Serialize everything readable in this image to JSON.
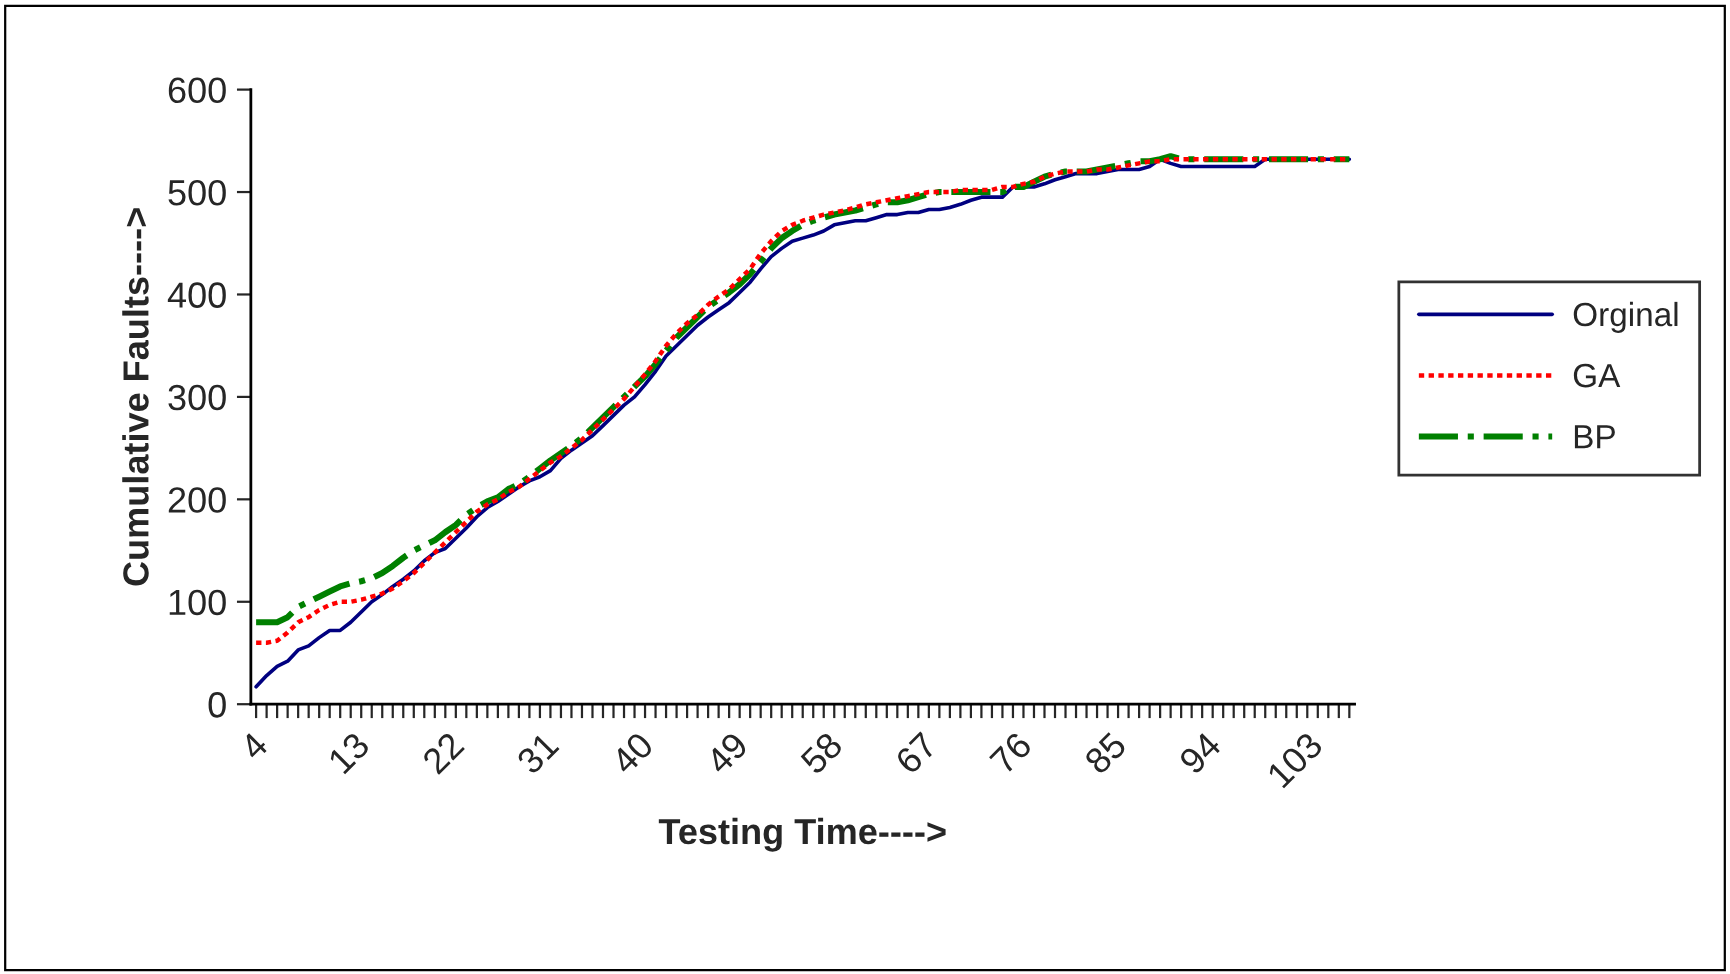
{
  "chart_data": {
    "type": "line",
    "xlabel": "Testing Time---->",
    "ylabel": "Cumulative Faults---->",
    "categories": [
      "4",
      null,
      null,
      null,
      null,
      null,
      null,
      null,
      null,
      "13",
      null,
      null,
      null,
      null,
      null,
      null,
      null,
      null,
      "22",
      null,
      null,
      null,
      null,
      null,
      null,
      null,
      null,
      "31",
      null,
      null,
      null,
      null,
      null,
      null,
      null,
      null,
      "40",
      null,
      null,
      null,
      null,
      null,
      null,
      null,
      null,
      "49",
      null,
      null,
      null,
      null,
      null,
      null,
      null,
      null,
      "58",
      null,
      null,
      null,
      null,
      null,
      null,
      null,
      null,
      "67",
      null,
      null,
      null,
      null,
      null,
      null,
      null,
      null,
      "76",
      null,
      null,
      null,
      null,
      null,
      null,
      null,
      null,
      "85",
      null,
      null,
      null,
      null,
      null,
      null,
      null,
      null,
      "94",
      null,
      null,
      null,
      null,
      null,
      null,
      null,
      null,
      "103",
      null,
      null,
      null,
      null,
      null
    ],
    "series": [
      {
        "name": "Orginal",
        "color": "#000080",
        "line_style": "solid",
        "values": [
          17,
          28,
          37,
          42,
          53,
          57,
          65,
          72,
          72,
          80,
          90,
          100,
          107,
          115,
          122,
          130,
          140,
          148,
          152,
          162,
          172,
          183,
          192,
          198,
          205,
          212,
          218,
          222,
          228,
          240,
          248,
          255,
          262,
          272,
          282,
          292,
          300,
          312,
          325,
          340,
          350,
          360,
          370,
          378,
          385,
          392,
          402,
          412,
          425,
          437,
          445,
          452,
          455,
          458,
          462,
          468,
          470,
          472,
          472,
          475,
          478,
          478,
          480,
          480,
          483,
          483,
          485,
          488,
          492,
          495,
          495,
          495,
          505,
          505,
          505,
          508,
          512,
          515,
          518,
          518,
          518,
          520,
          522,
          522,
          522,
          525,
          532,
          528,
          525,
          525,
          525,
          525,
          525,
          525,
          525,
          525,
          532,
          532,
          532,
          532,
          532,
          532,
          532,
          532,
          532
        ]
      },
      {
        "name": "GA",
        "color": "#ff0000",
        "line_style": "dotted",
        "values": [
          60,
          60,
          62,
          70,
          80,
          85,
          92,
          97,
          100,
          100,
          102,
          105,
          108,
          113,
          120,
          128,
          138,
          148,
          158,
          168,
          178,
          188,
          195,
          200,
          207,
          212,
          220,
          228,
          236,
          242,
          250,
          258,
          268,
          278,
          288,
          298,
          310,
          322,
          335,
          350,
          362,
          372,
          380,
          390,
          398,
          405,
          415,
          425,
          440,
          452,
          462,
          468,
          472,
          475,
          478,
          480,
          482,
          485,
          488,
          490,
          492,
          494,
          496,
          498,
          500,
          500,
          500,
          502,
          502,
          502,
          502,
          505,
          505,
          508,
          510,
          515,
          518,
          520,
          520,
          520,
          522,
          522,
          524,
          526,
          528,
          530,
          530,
          532,
          532,
          532,
          532,
          532,
          532,
          532,
          532,
          532,
          532,
          532,
          532,
          532,
          532,
          532,
          532,
          532,
          532
        ]
      },
      {
        "name": "BP",
        "color": "#008000",
        "line_style": "dashdot",
        "values": [
          80,
          80,
          80,
          85,
          95,
          100,
          105,
          110,
          115,
          118,
          120,
          123,
          128,
          135,
          143,
          150,
          155,
          160,
          168,
          175,
          185,
          192,
          198,
          202,
          210,
          215,
          222,
          230,
          238,
          245,
          252,
          260,
          270,
          280,
          290,
          300,
          310,
          320,
          332,
          345,
          358,
          368,
          378,
          388,
          395,
          402,
          410,
          420,
          432,
          445,
          455,
          462,
          468,
          472,
          475,
          478,
          480,
          482,
          485,
          488,
          490,
          490,
          492,
          495,
          498,
          500,
          500,
          500,
          500,
          500,
          500,
          500,
          505,
          505,
          510,
          515,
          518,
          520,
          520,
          520,
          522,
          524,
          526,
          528,
          530,
          530,
          532,
          535,
          532,
          532,
          532,
          532,
          532,
          532,
          532,
          532,
          532,
          532,
          532,
          532,
          532,
          532,
          532,
          532,
          532
        ]
      }
    ],
    "ylim": [
      0,
      600
    ],
    "yticks": [
      0,
      100,
      200,
      300,
      400,
      500,
      600
    ],
    "grid": false,
    "legend": "right",
    "marker": "none"
  }
}
